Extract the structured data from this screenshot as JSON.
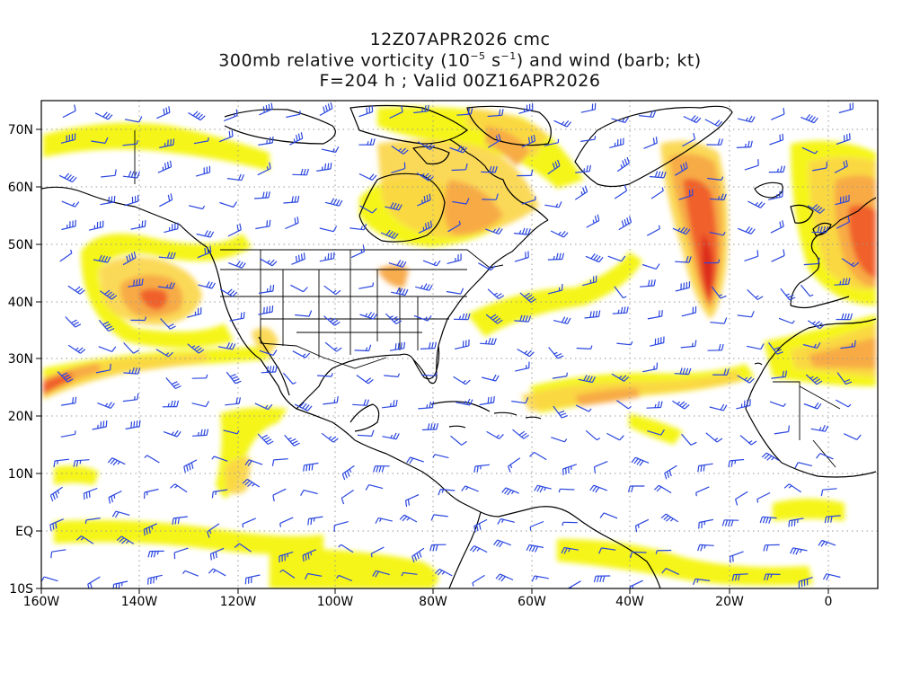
{
  "title": {
    "line1": "12Z07APR2026 cmc",
    "line2_pre": "300mb relative vorticity (10",
    "line2_exp1": "−5",
    "line2_mid": " s",
    "line2_exp2": "−1",
    "line2_post": ") and wind (barb; kt)",
    "line3": "F=204 h ; Valid 00Z16APR2026"
  },
  "axes": {
    "lon_labels": [
      "160W",
      "140W",
      "120W",
      "100W",
      "80W",
      "60W",
      "40W",
      "20W",
      "0"
    ],
    "lat_labels": [
      "70N",
      "60N",
      "50N",
      "40N",
      "30N",
      "20N",
      "10N",
      "EQ",
      "10S"
    ]
  },
  "colors": {
    "shade_light": "#f4f400",
    "shade_yellow": "#fbe64b",
    "shade_orange": "#f7a845",
    "shade_dark": "#ef5a2a",
    "shade_red": "#dc2a1e",
    "barb": "#2a46e0",
    "coast": "#000000",
    "grid": "#999999"
  }
}
